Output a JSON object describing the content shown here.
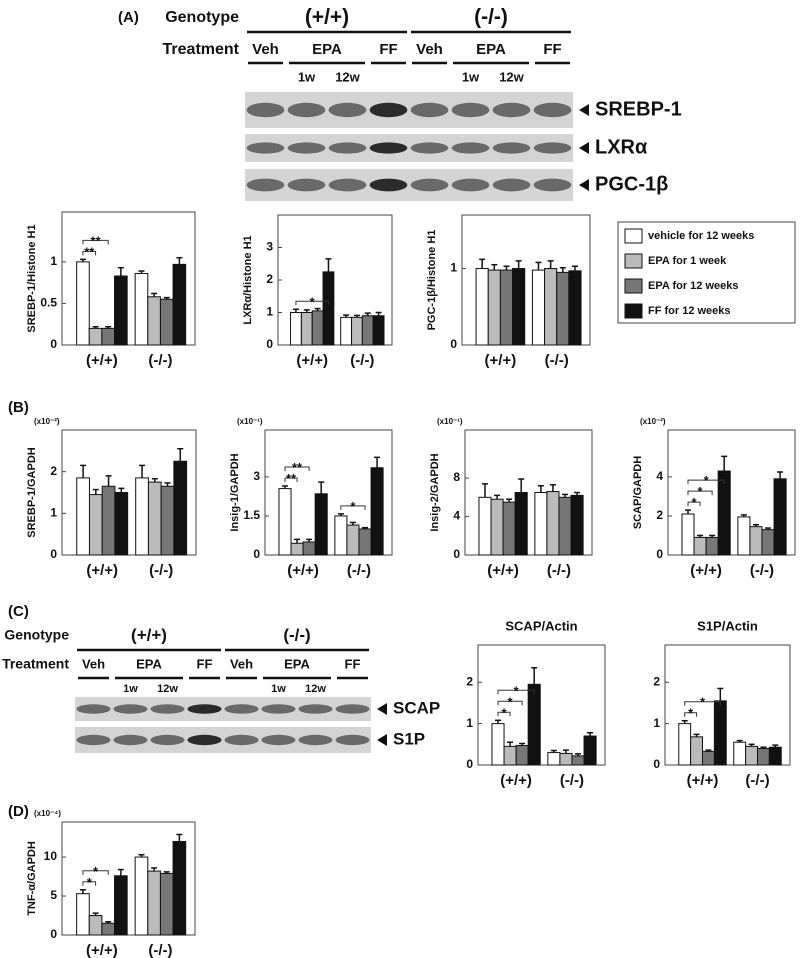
{
  "panel_labels": [
    "(A)",
    "(B)",
    "(C)",
    "(D)"
  ],
  "blots": [
    {
      "genotype_label": "Genotype",
      "treatment_label": "Treatment",
      "genotypes": [
        "(+/+)",
        "(-/-)"
      ],
      "treatments": [
        "Veh",
        "EPA",
        "FF",
        "Veh",
        "EPA",
        "FF"
      ],
      "durations": [
        "1w",
        "12w",
        "1w",
        "12w"
      ],
      "bands": [
        "SREBP-1",
        "LXRα",
        "PGC-1β"
      ]
    },
    {
      "genotype_label": "Genotype",
      "treatment_label": "Treatment",
      "genotypes": [
        "(+/+)",
        "(-/-)"
      ],
      "treatments": [
        "Veh",
        "EPA",
        "FF",
        "Veh",
        "EPA",
        "FF"
      ],
      "durations": [
        "1w",
        "12w",
        "1w",
        "12w"
      ],
      "bands": [
        "SCAP",
        "S1P"
      ]
    }
  ],
  "chart_data": [
    {
      "type": "bar",
      "ylabel": "SREBP-1/Histone H1",
      "categories": [
        "(+/+)",
        "(-/-)"
      ],
      "ylim": [
        0,
        1.6
      ],
      "yticks": [
        0,
        0.5,
        1
      ],
      "series": [
        {
          "color": "#ffffff",
          "values": [
            1.0,
            0.86
          ],
          "errors": [
            0.03,
            0.03
          ]
        },
        {
          "color": "#bbbbbb",
          "values": [
            0.2,
            0.58
          ],
          "errors": [
            0.02,
            0.04
          ]
        },
        {
          "color": "#777777",
          "values": [
            0.2,
            0.55
          ],
          "errors": [
            0.02,
            0.02
          ]
        },
        {
          "color": "#111111",
          "values": [
            0.83,
            0.97
          ],
          "errors": [
            0.1,
            0.08
          ]
        }
      ],
      "annotations": [
        {
          "text": "**",
          "category": 0,
          "pair": [
            0,
            1
          ]
        },
        {
          "text": "**",
          "category": 0,
          "pair": [
            0,
            2
          ]
        }
      ]
    },
    {
      "type": "bar",
      "ylabel": "LXRα/Histone H1",
      "categories": [
        "(+/+)",
        "(-/-)"
      ],
      "ylim": [
        0,
        4
      ],
      "yticks": [
        0,
        1,
        2,
        3
      ],
      "series": [
        {
          "color": "#ffffff",
          "values": [
            1.0,
            0.85
          ],
          "errors": [
            0.1,
            0.07
          ]
        },
        {
          "color": "#bbbbbb",
          "values": [
            1.0,
            0.85
          ],
          "errors": [
            0.08,
            0.06
          ]
        },
        {
          "color": "#777777",
          "values": [
            1.05,
            0.9
          ],
          "errors": [
            0.07,
            0.08
          ]
        },
        {
          "color": "#111111",
          "values": [
            2.25,
            0.9
          ],
          "errors": [
            0.4,
            0.1
          ]
        }
      ],
      "annotations": [
        {
          "text": "*",
          "category": 0,
          "pair": [
            0,
            3
          ]
        }
      ]
    },
    {
      "type": "bar",
      "ylabel": "PGC-1β/Histone H1",
      "categories": [
        "(+/+)",
        "(-/-)"
      ],
      "ylim": [
        0,
        1.7
      ],
      "yticks": [
        0,
        1
      ],
      "legend": "right",
      "series": [
        {
          "name": "vehicle for 12 weeks",
          "color": "#ffffff",
          "values": [
            1.0,
            0.98
          ],
          "errors": [
            0.12,
            0.1
          ]
        },
        {
          "name": "EPA for 1 week",
          "color": "#bbbbbb",
          "values": [
            0.98,
            1.0
          ],
          "errors": [
            0.07,
            0.1
          ]
        },
        {
          "name": "EPA for 12 weeks",
          "color": "#777777",
          "values": [
            0.98,
            0.95
          ],
          "errors": [
            0.05,
            0.06
          ]
        },
        {
          "name": "FF for 12 weeks",
          "color": "#111111",
          "values": [
            1.0,
            0.97
          ],
          "errors": [
            0.1,
            0.06
          ]
        }
      ]
    },
    {
      "type": "bar",
      "ylabel": "SREBP-1/GAPDH",
      "multiplier": "(x10⁻²)",
      "categories": [
        "(+/+)",
        "(-/-)"
      ],
      "ylim": [
        0,
        3
      ],
      "yticks": [
        0,
        1,
        2
      ],
      "series": [
        {
          "color": "#ffffff",
          "values": [
            1.85,
            1.85
          ],
          "errors": [
            0.3,
            0.3
          ]
        },
        {
          "color": "#bbbbbb",
          "values": [
            1.45,
            1.75
          ],
          "errors": [
            0.12,
            0.08
          ]
        },
        {
          "color": "#777777",
          "values": [
            1.65,
            1.65
          ],
          "errors": [
            0.25,
            0.08
          ]
        },
        {
          "color": "#111111",
          "values": [
            1.5,
            2.25
          ],
          "errors": [
            0.1,
            0.3
          ]
        }
      ]
    },
    {
      "type": "bar",
      "ylabel": "Insig-1/GAPDH",
      "multiplier": "(x10⁻¹)",
      "categories": [
        "(+/+)",
        "(-/-)"
      ],
      "ylim": [
        0,
        4.8
      ],
      "yticks": [
        0,
        1.5,
        3
      ],
      "series": [
        {
          "color": "#ffffff",
          "values": [
            2.55,
            1.5
          ],
          "errors": [
            0.1,
            0.08
          ]
        },
        {
          "color": "#bbbbbb",
          "values": [
            0.45,
            1.15
          ],
          "errors": [
            0.15,
            0.1
          ]
        },
        {
          "color": "#777777",
          "values": [
            0.5,
            1.0
          ],
          "errors": [
            0.1,
            0.05
          ]
        },
        {
          "color": "#111111",
          "values": [
            2.35,
            3.35
          ],
          "errors": [
            0.45,
            0.4
          ]
        }
      ],
      "annotations": [
        {
          "text": "**",
          "category": 0,
          "pair": [
            0,
            1
          ]
        },
        {
          "text": "**",
          "category": 0,
          "pair": [
            0,
            2
          ]
        },
        {
          "text": "*",
          "category": 1,
          "pair": [
            0,
            2
          ]
        }
      ]
    },
    {
      "type": "bar",
      "ylabel": "Insig-2/GAPDH",
      "multiplier": "(x10⁻¹)",
      "categories": [
        "(+/+)",
        "(-/-)"
      ],
      "ylim": [
        0,
        13
      ],
      "yticks": [
        0,
        4,
        8
      ],
      "series": [
        {
          "color": "#ffffff",
          "values": [
            6.0,
            6.5
          ],
          "errors": [
            1.4,
            0.7
          ]
        },
        {
          "color": "#bbbbbb",
          "values": [
            5.8,
            6.6
          ],
          "errors": [
            0.4,
            0.7
          ]
        },
        {
          "color": "#777777",
          "values": [
            5.5,
            6.0
          ],
          "errors": [
            0.3,
            0.3
          ]
        },
        {
          "color": "#111111",
          "values": [
            6.5,
            6.2
          ],
          "errors": [
            1.4,
            0.3
          ]
        }
      ]
    },
    {
      "type": "bar",
      "ylabel": "SCAP/GAPDH",
      "multiplier": "(x10⁻²)",
      "categories": [
        "(+/+)",
        "(-/-)"
      ],
      "ylim": [
        0,
        6.4
      ],
      "yticks": [
        0,
        2,
        4
      ],
      "series": [
        {
          "color": "#ffffff",
          "values": [
            2.1,
            1.95
          ],
          "errors": [
            0.2,
            0.1
          ]
        },
        {
          "color": "#bbbbbb",
          "values": [
            0.9,
            1.45
          ],
          "errors": [
            0.1,
            0.1
          ]
        },
        {
          "color": "#777777",
          "values": [
            0.9,
            1.3
          ],
          "errors": [
            0.1,
            0.08
          ]
        },
        {
          "color": "#111111",
          "values": [
            4.3,
            3.9
          ],
          "errors": [
            0.75,
            0.35
          ]
        }
      ],
      "annotations": [
        {
          "text": "*",
          "category": 0,
          "pair": [
            0,
            1
          ]
        },
        {
          "text": "*",
          "category": 0,
          "pair": [
            0,
            2
          ]
        },
        {
          "text": "*",
          "category": 0,
          "pair": [
            0,
            3
          ]
        }
      ]
    },
    {
      "type": "bar",
      "title": "SCAP/Actin",
      "categories": [
        "(+/+)",
        "(-/-)"
      ],
      "ylim": [
        0,
        2.9
      ],
      "yticks": [
        0,
        1,
        2
      ],
      "series": [
        {
          "color": "#ffffff",
          "values": [
            1.0,
            0.3
          ],
          "errors": [
            0.08,
            0.05
          ]
        },
        {
          "color": "#bbbbbb",
          "values": [
            0.45,
            0.28
          ],
          "errors": [
            0.1,
            0.08
          ]
        },
        {
          "color": "#777777",
          "values": [
            0.47,
            0.22
          ],
          "errors": [
            0.05,
            0.05
          ]
        },
        {
          "color": "#111111",
          "values": [
            1.95,
            0.7
          ],
          "errors": [
            0.4,
            0.08
          ]
        }
      ],
      "annotations": [
        {
          "text": "*",
          "category": 0,
          "pair": [
            0,
            1
          ]
        },
        {
          "text": "*",
          "category": 0,
          "pair": [
            0,
            2
          ]
        },
        {
          "text": "*",
          "category": 0,
          "pair": [
            0,
            3
          ]
        }
      ]
    },
    {
      "type": "bar",
      "title": "S1P/Actin",
      "categories": [
        "(+/+)",
        "(-/-)"
      ],
      "ylim": [
        0,
        2.9
      ],
      "yticks": [
        0,
        1,
        2
      ],
      "series": [
        {
          "color": "#ffffff",
          "values": [
            1.0,
            0.55
          ],
          "errors": [
            0.07,
            0.04
          ]
        },
        {
          "color": "#bbbbbb",
          "values": [
            0.68,
            0.45
          ],
          "errors": [
            0.06,
            0.05
          ]
        },
        {
          "color": "#777777",
          "values": [
            0.33,
            0.4
          ],
          "errors": [
            0.03,
            0.03
          ]
        },
        {
          "color": "#111111",
          "values": [
            1.55,
            0.43
          ],
          "errors": [
            0.3,
            0.05
          ]
        }
      ],
      "annotations": [
        {
          "text": "*",
          "category": 0,
          "pair": [
            0,
            1
          ]
        },
        {
          "text": "*",
          "category": 0,
          "pair": [
            0,
            3
          ]
        }
      ]
    },
    {
      "type": "bar",
      "ylabel": "TNF-α/GAPDH",
      "multiplier": "(x10⁻⁴)",
      "categories": [
        "(+/+)",
        "(-/-)"
      ],
      "ylim": [
        0,
        14.5
      ],
      "yticks": [
        0,
        5,
        10
      ],
      "series": [
        {
          "color": "#ffffff",
          "values": [
            5.3,
            10
          ],
          "errors": [
            0.5,
            0.3
          ]
        },
        {
          "color": "#bbbbbb",
          "values": [
            2.5,
            8.2
          ],
          "errors": [
            0.3,
            0.4
          ]
        },
        {
          "color": "#777777",
          "values": [
            1.5,
            7.9
          ],
          "errors": [
            0.2,
            0.2
          ]
        },
        {
          "color": "#111111",
          "values": [
            7.6,
            12
          ],
          "errors": [
            0.8,
            0.9
          ]
        }
      ],
      "annotations": [
        {
          "text": "*",
          "category": 0,
          "pair": [
            0,
            1
          ]
        },
        {
          "text": "*",
          "category": 0,
          "pair": [
            0,
            2
          ]
        }
      ]
    }
  ]
}
